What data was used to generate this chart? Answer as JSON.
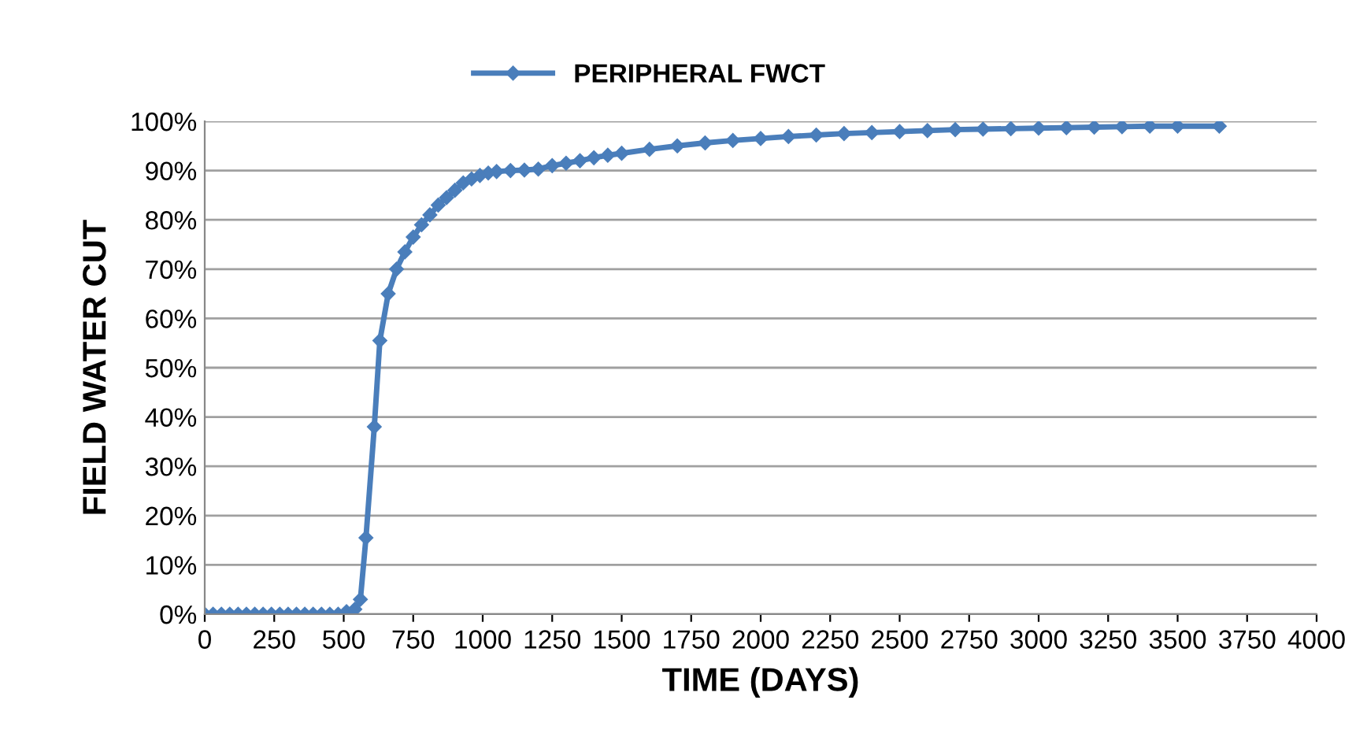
{
  "chart_data": {
    "type": "line",
    "xlabel": "TIME (DAYS)",
    "ylabel": "FIELD WATER CUT",
    "series": [
      {
        "name": "PERIPHERAL FWCT",
        "color": "#4a7ebb",
        "x": [
          0,
          30,
          60,
          90,
          120,
          150,
          180,
          210,
          240,
          270,
          300,
          330,
          360,
          390,
          420,
          450,
          480,
          510,
          540,
          560,
          580,
          610,
          630,
          660,
          690,
          720,
          750,
          780,
          810,
          840,
          870,
          900,
          930,
          960,
          990,
          1020,
          1050,
          1100,
          1150,
          1200,
          1250,
          1300,
          1350,
          1400,
          1450,
          1500,
          1600,
          1700,
          1800,
          1900,
          2000,
          2100,
          2200,
          2300,
          2400,
          2500,
          2600,
          2700,
          2800,
          2900,
          3000,
          3100,
          3200,
          3300,
          3400,
          3500,
          3650
        ],
        "values": [
          0,
          0,
          0,
          0,
          0,
          0,
          0,
          0,
          0,
          0,
          0,
          0,
          0,
          0,
          0,
          0,
          0,
          0.5,
          1,
          3,
          15.5,
          38,
          55.5,
          65,
          70,
          73.5,
          76.5,
          79,
          81,
          83,
          84.5,
          86,
          87.5,
          88.3,
          89,
          89.5,
          89.8,
          90,
          90.1,
          90.3,
          91,
          91.5,
          92,
          92.6,
          93.1,
          93.5,
          94.3,
          95,
          95.6,
          96.1,
          96.5,
          96.9,
          97.2,
          97.5,
          97.7,
          97.9,
          98.1,
          98.3,
          98.4,
          98.5,
          98.6,
          98.7,
          98.8,
          98.9,
          99,
          99,
          99
        ]
      }
    ],
    "xlim": [
      0,
      4000
    ],
    "xticks": [
      0,
      250,
      500,
      750,
      1000,
      1250,
      1500,
      1750,
      2000,
      2250,
      2500,
      2750,
      3000,
      3250,
      3500,
      3750,
      4000
    ],
    "ylim": [
      0,
      100
    ],
    "yticks": [
      {
        "value": 0,
        "label": "0%"
      },
      {
        "value": 10,
        "label": "10%"
      },
      {
        "value": 20,
        "label": "20%"
      },
      {
        "value": 30,
        "label": "30%"
      },
      {
        "value": 40,
        "label": "40%"
      },
      {
        "value": 50,
        "label": "50%"
      },
      {
        "value": 60,
        "label": "60%"
      },
      {
        "value": 70,
        "label": "70%"
      },
      {
        "value": 80,
        "label": "80%"
      },
      {
        "value": 90,
        "label": "90%"
      },
      {
        "value": 100,
        "label": "100%"
      }
    ],
    "grid": "y",
    "legend": "top",
    "marker": "diamond",
    "line_style": "solid"
  }
}
